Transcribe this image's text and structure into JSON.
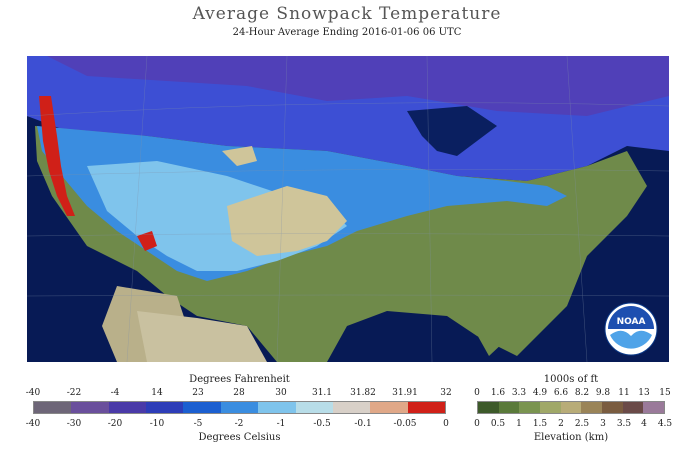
{
  "header": {
    "title": "Average Snowpack Temperature",
    "subtitle": "24-Hour Average Ending 2016-01-06 06 UTC"
  },
  "temperature_legend": {
    "title_top": "Degrees Fahrenheit",
    "title_bottom": "Degrees Celsius",
    "fahrenheit_ticks": [
      "-40",
      "-22",
      "-4",
      "14",
      "23",
      "28",
      "30",
      "31.1",
      "31.82",
      "31.91",
      "32"
    ],
    "celsius_ticks": [
      "-40",
      "-30",
      "-20",
      "-10",
      "-5",
      "-2",
      "-1",
      "-0.5",
      "-0.1",
      "-0.05",
      "0"
    ],
    "colors": [
      "#6e6678",
      "#6a4f9c",
      "#4a3aa8",
      "#2d3db8",
      "#1b5fd0",
      "#3a8de0",
      "#7fc4ec",
      "#b8dde8",
      "#d8d0c8",
      "#e0a888",
      "#d02018",
      "#c8000a"
    ]
  },
  "elevation_legend": {
    "title_top": "1000s of ft",
    "title_bottom": "Elevation (km)",
    "feet_ticks": [
      "0",
      "1.6",
      "3.3",
      "4.9",
      "6.6",
      "8.2",
      "9.8",
      "11",
      "13",
      "15"
    ],
    "km_ticks": [
      "0",
      "0.5",
      "1",
      "1.5",
      "2",
      "2.5",
      "3",
      "3.5",
      "4",
      "4.5"
    ],
    "colors": [
      "#3d5a2a",
      "#5a7a3a",
      "#7a9450",
      "#a0a868",
      "#b8ac78",
      "#9a8458",
      "#7a5c40",
      "#6a4a48",
      "#9a7a9a",
      "#c8c0d0"
    ]
  },
  "logo": {
    "text": "NOAA",
    "icon": "noaa-logo-icon"
  }
}
